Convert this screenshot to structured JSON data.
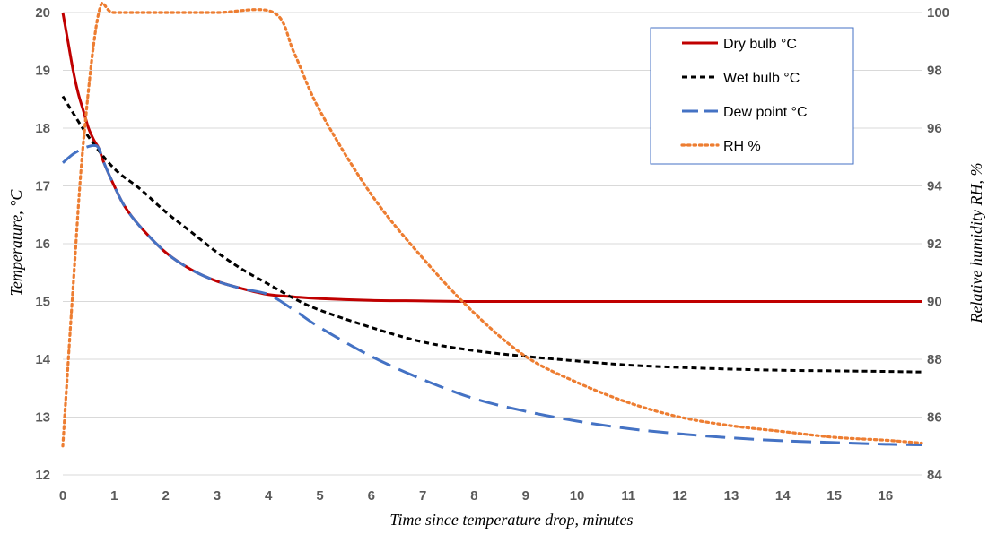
{
  "chart_data": {
    "type": "line",
    "title": "",
    "xlabel": "Time since temperature drop, minutes",
    "ylabel_left": "Temperature, °C",
    "ylabel_right": "Relative humidity RH, %",
    "xlim": [
      0,
      16.7
    ],
    "ylim_left": [
      12,
      20
    ],
    "ylim_right": [
      84,
      100
    ],
    "x_ticks": [
      "0",
      "1",
      "2",
      "3",
      "4",
      "5",
      "6",
      "7",
      "8",
      "9",
      "10",
      "11",
      "12",
      "13",
      "14",
      "15",
      "16"
    ],
    "y_left_ticks": [
      "12",
      "13",
      "14",
      "15",
      "16",
      "17",
      "18",
      "19",
      "20"
    ],
    "y_right_ticks": [
      "84",
      "86",
      "88",
      "90",
      "92",
      "94",
      "96",
      "98",
      "100"
    ],
    "grid": "horizontal",
    "legend_position": "top-right",
    "series": [
      {
        "name": "Dry bulb °C",
        "axis": "left",
        "color": "#c00000",
        "style": "solid",
        "x": [
          0,
          0.1,
          0.2,
          0.3,
          0.4,
          0.5,
          0.6,
          0.7,
          0.8,
          1.0,
          1.2,
          1.5,
          2.0,
          2.5,
          3.0,
          3.5,
          4.0,
          4.5,
          5.0,
          6.0,
          7.0,
          8.0,
          10.0,
          12.0,
          14.0,
          16.7
        ],
        "y": [
          20.0,
          19.5,
          19.0,
          18.6,
          18.3,
          18.0,
          17.8,
          17.65,
          17.4,
          17.0,
          16.65,
          16.3,
          15.85,
          15.55,
          15.35,
          15.22,
          15.12,
          15.08,
          15.05,
          15.02,
          15.01,
          15.0,
          15.0,
          15.0,
          15.0,
          15.0
        ]
      },
      {
        "name": "Wet bulb °C",
        "axis": "left",
        "color": "#000000",
        "style": "dashed",
        "x": [
          0,
          0.5,
          1.0,
          1.5,
          2.0,
          2.5,
          3.0,
          3.5,
          4.0,
          4.5,
          5.0,
          6.0,
          7.0,
          8.0,
          9.0,
          10.0,
          11.0,
          12.0,
          13.0,
          14.0,
          15.0,
          16.0,
          16.7
        ],
        "y": [
          18.55,
          17.85,
          17.3,
          16.95,
          16.55,
          16.2,
          15.85,
          15.55,
          15.3,
          15.05,
          14.85,
          14.55,
          14.3,
          14.15,
          14.05,
          13.97,
          13.9,
          13.86,
          13.83,
          13.81,
          13.8,
          13.79,
          13.78
        ]
      },
      {
        "name": "Dew point °C",
        "axis": "left",
        "color": "#4472c4",
        "style": "long-dash",
        "x": [
          0,
          0.2,
          0.4,
          0.6,
          0.7,
          0.8,
          1.0,
          1.2,
          1.5,
          2.0,
          2.5,
          3.0,
          3.5,
          4.0,
          4.5,
          5.0,
          6.0,
          7.0,
          8.0,
          9.0,
          10.0,
          11.0,
          12.0,
          13.0,
          14.0,
          15.0,
          16.0,
          16.7
        ],
        "y": [
          17.4,
          17.55,
          17.65,
          17.7,
          17.65,
          17.4,
          17.0,
          16.65,
          16.3,
          15.85,
          15.55,
          15.35,
          15.22,
          15.12,
          14.85,
          14.55,
          14.05,
          13.65,
          13.32,
          13.1,
          12.93,
          12.8,
          12.71,
          12.64,
          12.59,
          12.56,
          12.53,
          12.52
        ]
      },
      {
        "name": "RH %",
        "axis": "right",
        "color": "#ed7d31",
        "style": "dotted",
        "x": [
          0,
          0.2,
          0.4,
          0.7,
          1.0,
          2.0,
          3.0,
          4.1,
          4.5,
          5.0,
          6.0,
          7.0,
          8.0,
          9.0,
          10.0,
          11.0,
          12.0,
          13.0,
          14.0,
          15.0,
          16.0,
          16.7
        ],
        "y": [
          85.0,
          90.5,
          95.5,
          100.0,
          100.0,
          100.0,
          100.0,
          100.0,
          98.6,
          96.6,
          93.7,
          91.5,
          89.6,
          88.1,
          87.2,
          86.5,
          86.0,
          85.7,
          85.5,
          85.3,
          85.2,
          85.1
        ]
      }
    ]
  }
}
